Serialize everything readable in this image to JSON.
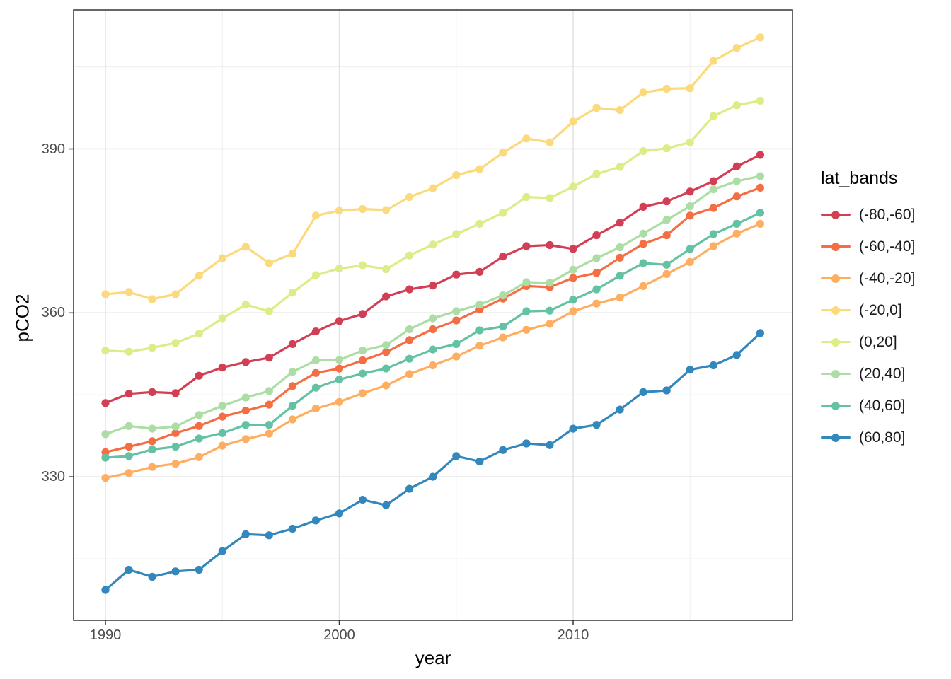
{
  "axes": {
    "x_label": "year",
    "y_label": "pCO2",
    "x_ticks": [
      "1990",
      "2000",
      "2010"
    ],
    "y_ticks": [
      "330",
      "360",
      "390"
    ]
  },
  "legend": {
    "title": "lat_bands",
    "items": [
      "(-80,-60]",
      "(-60,-40]",
      "(-40,-20]",
      "(-20,0]",
      "(0,20]",
      "(20,40]",
      "(40,60]",
      "(60,80]"
    ]
  },
  "colors": {
    "panel_border": "#333333",
    "grid_major": "#e3e3e3",
    "grid_minor": "#f0f0f0",
    "tick_text": "#4d4d4d"
  },
  "chart_data": {
    "type": "line",
    "title": "",
    "xlabel": "year",
    "ylabel": "pCO2",
    "legend_title": "lat_bands",
    "legend_position": "right",
    "grid": true,
    "x_tick_values": [
      1990,
      2000,
      2010
    ],
    "y_tick_values": [
      330,
      360,
      390
    ],
    "x_minor_values": [
      1995,
      2005,
      2015
    ],
    "y_minor_values": [
      315,
      345,
      375,
      405
    ],
    "xlim": [
      1988.6,
      2019.4
    ],
    "ylim": [
      304,
      415.5
    ],
    "x": [
      1990,
      1991,
      1992,
      1993,
      1994,
      1995,
      1996,
      1997,
      1998,
      1999,
      2000,
      2001,
      2002,
      2003,
      2004,
      2005,
      2006,
      2007,
      2008,
      2009,
      2010,
      2011,
      2012,
      2013,
      2014,
      2015,
      2016,
      2017,
      2018
    ],
    "series": [
      {
        "name": "(-80,-60]",
        "color": "#d23f54",
        "values": [
          343.5,
          345.2,
          345.5,
          345.3,
          348.5,
          350.0,
          351.0,
          351.8,
          354.3,
          356.6,
          358.5,
          359.8,
          363.0,
          364.3,
          365.0,
          367.0,
          367.5,
          370.3,
          372.2,
          372.4,
          371.7,
          374.2,
          376.5,
          379.4,
          380.4,
          382.2,
          384.1,
          386.8,
          388.9
        ]
      },
      {
        "name": "(-60,-40]",
        "color": "#f46d43",
        "values": [
          334.5,
          335.5,
          336.5,
          338.0,
          339.3,
          341.0,
          342.1,
          343.2,
          346.6,
          349.0,
          349.8,
          351.3,
          352.8,
          355.0,
          357.0,
          358.6,
          360.6,
          362.6,
          364.9,
          364.7,
          366.4,
          367.3,
          370.1,
          372.6,
          374.2,
          377.8,
          379.2,
          381.3,
          382.9
        ]
      },
      {
        "name": "(-40,-20]",
        "color": "#fdae61",
        "values": [
          329.8,
          330.7,
          331.8,
          332.4,
          333.6,
          335.7,
          336.9,
          337.9,
          340.5,
          342.5,
          343.7,
          345.3,
          346.7,
          348.8,
          350.4,
          352.0,
          354.0,
          355.5,
          356.9,
          358.0,
          360.3,
          361.7,
          362.8,
          364.9,
          367.1,
          369.3,
          372.2,
          374.5,
          376.3
        ]
      },
      {
        "name": "(-20,0]",
        "color": "#fbd97d",
        "values": [
          363.4,
          363.8,
          362.5,
          363.4,
          366.8,
          370.0,
          372.1,
          369.1,
          370.8,
          377.8,
          378.7,
          379.0,
          378.8,
          381.2,
          382.8,
          385.2,
          386.3,
          389.3,
          391.9,
          391.2,
          395.0,
          397.5,
          397.1,
          400.3,
          401.0,
          401.1,
          406.1,
          408.5,
          410.4
        ]
      },
      {
        "name": "(0,20]",
        "color": "#dcec86",
        "values": [
          353.1,
          352.9,
          353.6,
          354.5,
          356.2,
          359.0,
          361.5,
          360.3,
          363.7,
          366.9,
          368.1,
          368.7,
          368.0,
          370.5,
          372.5,
          374.4,
          376.3,
          378.3,
          381.2,
          381.0,
          383.1,
          385.4,
          386.7,
          389.6,
          390.1,
          391.2,
          396.0,
          398.0,
          398.8
        ]
      },
      {
        "name": "(20,40]",
        "color": "#abdda4",
        "values": [
          337.8,
          339.3,
          338.8,
          339.2,
          341.3,
          343.0,
          344.5,
          345.7,
          349.2,
          351.3,
          351.4,
          353.1,
          354.1,
          357.0,
          359.0,
          360.3,
          361.5,
          363.2,
          365.6,
          365.5,
          367.9,
          370.0,
          372.0,
          374.5,
          377.0,
          379.5,
          382.6,
          384.1,
          385.0
        ]
      },
      {
        "name": "(40,60]",
        "color": "#63c1a4",
        "values": [
          333.5,
          333.8,
          335.0,
          335.5,
          337.0,
          338.0,
          339.5,
          339.5,
          343.0,
          346.3,
          347.8,
          348.9,
          349.8,
          351.6,
          353.3,
          354.3,
          356.8,
          357.5,
          360.3,
          360.4,
          362.4,
          364.3,
          366.8,
          369.1,
          368.8,
          371.7,
          374.4,
          376.3,
          378.3
        ]
      },
      {
        "name": "(60,80]",
        "color": "#3288bd",
        "values": [
          309.3,
          313.0,
          311.7,
          312.7,
          313.0,
          316.4,
          319.5,
          319.3,
          320.5,
          322.0,
          323.3,
          325.8,
          324.8,
          327.8,
          330.0,
          333.8,
          332.8,
          334.9,
          336.1,
          335.8,
          338.8,
          339.5,
          342.3,
          345.5,
          345.8,
          349.6,
          350.4,
          352.3,
          356.3
        ]
      }
    ]
  }
}
